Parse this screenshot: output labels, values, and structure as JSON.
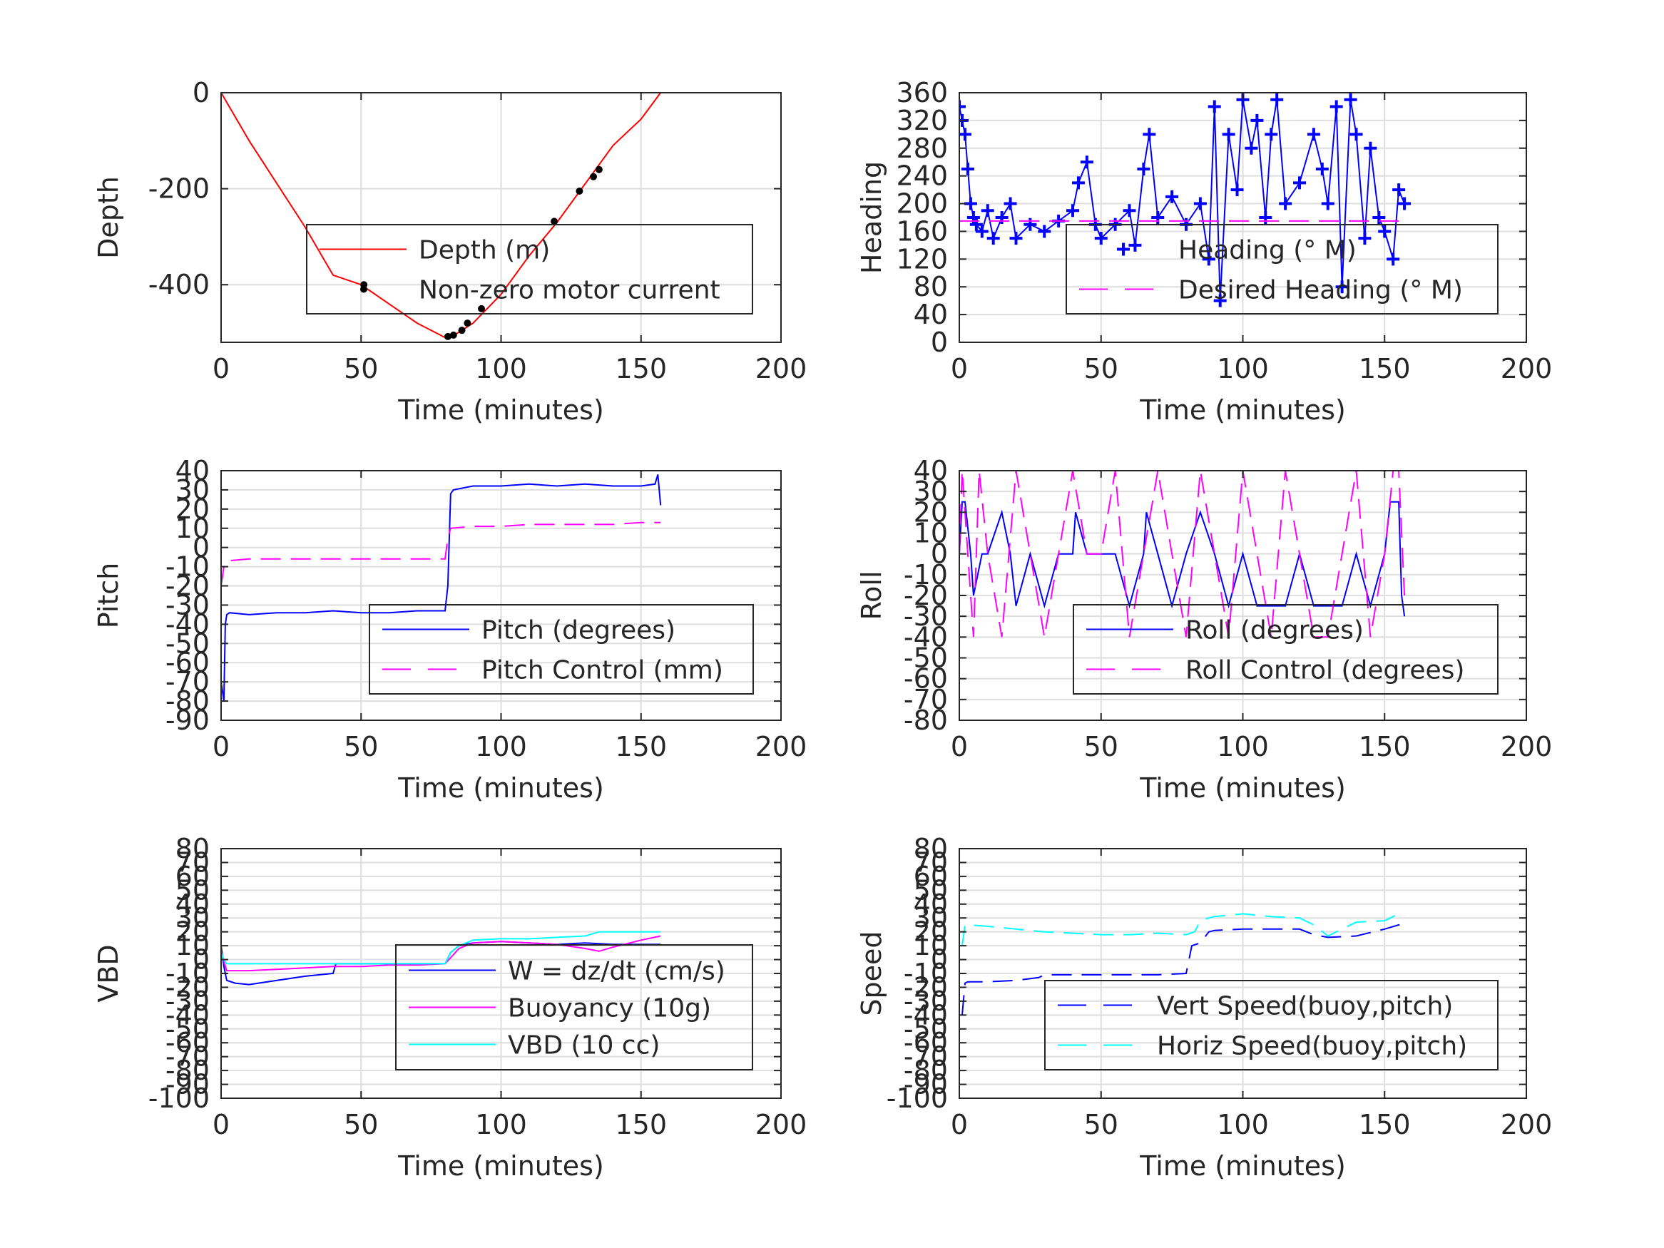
{
  "chart_data": [
    {
      "type": "line",
      "xlabel": "Time (minutes)",
      "ylabel": "Depth",
      "xlim": [
        0,
        200
      ],
      "ylim": [
        -520,
        0
      ],
      "xticks": [
        0,
        50,
        100,
        150,
        200
      ],
      "yticks": [
        -400,
        -200,
        0
      ],
      "ytick_labels": [
        "-400",
        "-200",
        "0"
      ],
      "grid": true,
      "legend": "center-right",
      "series": [
        {
          "name": "Depth (m)",
          "color": "#ff0000",
          "style": "solid",
          "x": [
            0,
            10,
            20,
            30,
            40,
            50,
            60,
            70,
            80,
            82,
            90,
            100,
            110,
            120,
            130,
            140,
            150,
            157
          ],
          "y": [
            0,
            -100,
            -190,
            -280,
            -380,
            -400,
            -440,
            -480,
            -510,
            -510,
            -480,
            -420,
            -340,
            -270,
            -190,
            -110,
            -55,
            0
          ]
        },
        {
          "name": "Non-zero motor current",
          "color": "#000000",
          "style": "markers",
          "x": [
            51,
            81,
            83,
            86,
            88,
            93,
            119,
            128,
            133,
            135
          ],
          "y": [
            -400,
            -508,
            -505,
            -495,
            -480,
            -450,
            -268,
            -205,
            -175,
            -160
          ]
        }
      ]
    },
    {
      "type": "line",
      "xlabel": "Time (minutes)",
      "ylabel": "Heading",
      "xlim": [
        0,
        200
      ],
      "ylim": [
        0,
        360
      ],
      "xticks": [
        0,
        50,
        100,
        150,
        200
      ],
      "yticks": [
        0,
        40,
        80,
        120,
        160,
        200,
        240,
        280,
        320,
        360
      ],
      "ytick_labels": [
        "0",
        "40",
        "80",
        "120",
        "160",
        "200",
        "240",
        "280",
        "320",
        "360"
      ],
      "grid": true,
      "legend": "center-right",
      "series": [
        {
          "name": "Heading (° M)",
          "color": "#0000ff",
          "style": "plus-markers",
          "x": [
            0,
            1,
            2,
            3,
            4,
            5,
            6,
            8,
            10,
            12,
            15,
            18,
            20,
            25,
            30,
            35,
            40,
            42,
            45,
            48,
            50,
            55,
            60,
            62,
            65,
            67,
            70,
            75,
            80,
            85,
            88,
            90,
            92,
            95,
            98,
            100,
            103,
            105,
            108,
            110,
            112,
            115,
            120,
            125,
            128,
            130,
            133,
            135,
            138,
            140,
            143,
            145,
            148,
            150,
            153,
            155,
            157
          ],
          "y": [
            340,
            320,
            300,
            250,
            200,
            180,
            170,
            160,
            190,
            150,
            180,
            200,
            150,
            170,
            160,
            175,
            190,
            230,
            260,
            170,
            150,
            170,
            190,
            140,
            250,
            300,
            180,
            210,
            170,
            200,
            120,
            340,
            60,
            300,
            220,
            350,
            280,
            320,
            180,
            300,
            350,
            200,
            230,
            300,
            250,
            200,
            340,
            80,
            350,
            300,
            150,
            280,
            180,
            160,
            120,
            220,
            200
          ]
        },
        {
          "name": "Desired Heading (° M)",
          "color": "#ff00ff",
          "style": "dashed",
          "x": [
            0,
            157
          ],
          "y": [
            175,
            175
          ]
        }
      ]
    },
    {
      "type": "line",
      "xlabel": "Time (minutes)",
      "ylabel": "Pitch",
      "xlim": [
        0,
        200
      ],
      "ylim": [
        -90,
        40
      ],
      "xticks": [
        0,
        50,
        100,
        150,
        200
      ],
      "yticks": [
        -90,
        -80,
        -70,
        -60,
        -50,
        -40,
        -30,
        -20,
        -10,
        0,
        10,
        20,
        30,
        40
      ],
      "ytick_labels": [
        "-90",
        "-80",
        "-70",
        "-60",
        "-50",
        "-40",
        "-30",
        "-20",
        "-10",
        "0",
        "10",
        "20",
        "30",
        "40"
      ],
      "grid": true,
      "legend": "center-right",
      "series": [
        {
          "name": "Pitch (degrees)",
          "color": "#0000ff",
          "style": "solid",
          "x": [
            0,
            1,
            1.5,
            2,
            3,
            10,
            20,
            30,
            40,
            50,
            60,
            70,
            80,
            81,
            82,
            83,
            90,
            100,
            110,
            120,
            130,
            140,
            150,
            155,
            156,
            157
          ],
          "y": [
            -70,
            -80,
            -40,
            -35,
            -34,
            -35,
            -34,
            -34,
            -33,
            -34,
            -34,
            -33,
            -33,
            -20,
            28,
            30,
            32,
            32,
            33,
            32,
            33,
            32,
            32,
            33,
            38,
            22
          ]
        },
        {
          "name": "Pitch Control (mm)",
          "color": "#ff00ff",
          "style": "dashed",
          "x": [
            0,
            1,
            2,
            10,
            20,
            30,
            40,
            50,
            60,
            70,
            80,
            81,
            82,
            90,
            100,
            110,
            120,
            130,
            140,
            150,
            157
          ],
          "y": [
            -20,
            -10,
            -7,
            -6,
            -6,
            -6,
            -6,
            -6,
            -6,
            -6,
            -6,
            5,
            10,
            11,
            11,
            12,
            12,
            12,
            12,
            13,
            13
          ]
        }
      ]
    },
    {
      "type": "line",
      "xlabel": "Time (minutes)",
      "ylabel": "Roll",
      "xlim": [
        0,
        200
      ],
      "ylim": [
        -80,
        40
      ],
      "xticks": [
        0,
        50,
        100,
        150,
        200
      ],
      "yticks": [
        -80,
        -70,
        -60,
        -50,
        -40,
        -30,
        -20,
        -10,
        0,
        10,
        20,
        30,
        40
      ],
      "ytick_labels": [
        "-80",
        "-70",
        "-60",
        "-50",
        "-40",
        "-30",
        "-20",
        "-10",
        "0",
        "10",
        "20",
        "30",
        "40"
      ],
      "grid": true,
      "legend": "center-right",
      "series": [
        {
          "name": "Roll (degrees)",
          "color": "#0000ff",
          "style": "solid",
          "x": [
            0,
            1,
            2,
            4,
            5,
            8,
            10,
            15,
            18,
            20,
            25,
            30,
            35,
            40,
            41,
            45,
            47,
            50,
            55,
            60,
            65,
            66,
            70,
            75,
            80,
            85,
            90,
            95,
            100,
            105,
            110,
            115,
            120,
            125,
            130,
            135,
            140,
            145,
            150,
            152,
            155,
            156,
            157
          ],
          "y": [
            0,
            25,
            25,
            0,
            -20,
            0,
            0,
            20,
            0,
            -25,
            0,
            -25,
            0,
            0,
            20,
            0,
            0,
            0,
            0,
            -25,
            0,
            20,
            0,
            -25,
            0,
            20,
            0,
            -25,
            0,
            -25,
            -25,
            -25,
            0,
            -25,
            -25,
            -25,
            0,
            -25,
            0,
            25,
            25,
            -20,
            -30
          ]
        },
        {
          "name": "Roll Control (degrees)",
          "color": "#ff00ff",
          "style": "dashed",
          "x": [
            0,
            1,
            3,
            5,
            7,
            10,
            15,
            20,
            25,
            30,
            35,
            40,
            45,
            50,
            55,
            60,
            65,
            70,
            75,
            80,
            85,
            90,
            95,
            100,
            105,
            110,
            115,
            120,
            125,
            130,
            135,
            140,
            145,
            150,
            153,
            155,
            157
          ],
          "y": [
            0,
            40,
            0,
            -40,
            40,
            0,
            -40,
            40,
            0,
            -40,
            0,
            40,
            0,
            0,
            40,
            -40,
            0,
            40,
            0,
            -40,
            40,
            0,
            -40,
            40,
            0,
            -40,
            40,
            0,
            -40,
            -40,
            0,
            40,
            -40,
            0,
            40,
            40,
            -20
          ]
        }
      ]
    },
    {
      "type": "line",
      "xlabel": "Time (minutes)",
      "ylabel": "VBD",
      "xlim": [
        0,
        200
      ],
      "ylim": [
        -100,
        80
      ],
      "xticks": [
        0,
        50,
        100,
        150,
        200
      ],
      "yticks": [
        -100,
        -90,
        -80,
        -70,
        -60,
        -50,
        -40,
        -30,
        -20,
        -10,
        0,
        10,
        20,
        30,
        40,
        50,
        60,
        70,
        80
      ],
      "ytick_labels": [
        "-100",
        "-90",
        "-80",
        "-70",
        "-60",
        "-50",
        "-40",
        "-30",
        "-20",
        "-10",
        "0",
        "10",
        "20",
        "30",
        "40",
        "50",
        "60",
        "70",
        "80"
      ],
      "grid": true,
      "legend": "center-right",
      "series": [
        {
          "name": "W = dz/dt (cm/s)",
          "color": "#0000ff",
          "style": "solid",
          "x": [
            0,
            1,
            2,
            5,
            10,
            20,
            30,
            40,
            41,
            50,
            60,
            70,
            80,
            82,
            85,
            90,
            100,
            110,
            120,
            130,
            140,
            150,
            157
          ],
          "y": [
            10,
            -5,
            -15,
            -17,
            -18,
            -15,
            -12,
            -10,
            -3,
            -3,
            -3,
            -3,
            -3,
            5,
            10,
            12,
            13,
            12,
            11,
            12,
            11,
            11,
            11
          ]
        },
        {
          "name": "Buoyancy (10g)",
          "color": "#ff00ff",
          "style": "solid",
          "x": [
            0,
            2,
            10,
            20,
            30,
            40,
            50,
            60,
            70,
            80,
            85,
            90,
            100,
            110,
            120,
            130,
            135,
            140,
            150,
            157
          ],
          "y": [
            5,
            -8,
            -8,
            -7,
            -6,
            -5,
            -5,
            -4,
            -4,
            -3,
            8,
            12,
            13,
            12,
            11,
            8,
            6,
            9,
            14,
            17
          ]
        },
        {
          "name": "VBD (10 cc)",
          "color": "#00ffff",
          "style": "solid",
          "x": [
            0,
            1,
            2,
            10,
            20,
            30,
            40,
            50,
            60,
            70,
            80,
            82,
            85,
            90,
            100,
            110,
            120,
            130,
            135,
            140,
            150,
            157
          ],
          "y": [
            5,
            0,
            -3,
            -3,
            -3,
            -3,
            -3,
            -3,
            -3,
            -3,
            -3,
            5,
            10,
            14,
            15,
            15,
            16,
            17,
            20,
            20,
            20,
            20
          ]
        }
      ]
    },
    {
      "type": "line",
      "xlabel": "Time (minutes)",
      "ylabel": "Speed",
      "xlim": [
        0,
        200
      ],
      "ylim": [
        -100,
        80
      ],
      "xticks": [
        0,
        50,
        100,
        150,
        200
      ],
      "yticks": [
        -100,
        -90,
        -80,
        -70,
        -60,
        -50,
        -40,
        -30,
        -20,
        -10,
        0,
        10,
        20,
        30,
        40,
        50,
        60,
        70,
        80
      ],
      "ytick_labels": [
        "-100",
        "-90",
        "-80",
        "-70",
        "-60",
        "-50",
        "-40",
        "-30",
        "-20",
        "-10",
        "0",
        "10",
        "20",
        "30",
        "40",
        "50",
        "60",
        "70",
        "80"
      ],
      "grid": true,
      "legend": "center-right",
      "series": [
        {
          "name": "Vert Speed(buoy,pitch)",
          "color": "#0000ff",
          "style": "dashed",
          "x": [
            1,
            2,
            3,
            10,
            20,
            28,
            30,
            40,
            50,
            60,
            70,
            80,
            82,
            85,
            88,
            90,
            100,
            110,
            120,
            125,
            130,
            140,
            150,
            155,
            157
          ],
          "y": [
            -40,
            -17,
            -16,
            -16,
            -15,
            -13,
            -11,
            -11,
            -11,
            -11,
            -11,
            -10,
            10,
            12,
            20,
            21,
            22,
            22,
            22,
            18,
            16,
            17,
            22,
            25,
            25
          ]
        },
        {
          "name": "Horiz Speed(buoy,pitch)",
          "color": "#00ffff",
          "style": "dashed",
          "x": [
            1,
            2,
            3,
            10,
            20,
            30,
            40,
            50,
            60,
            70,
            80,
            83,
            85,
            88,
            90,
            100,
            110,
            120,
            125,
            130,
            135,
            140,
            150,
            155,
            157
          ],
          "y": [
            10,
            25,
            25,
            24,
            22,
            20,
            19,
            18,
            18,
            19,
            18,
            20,
            28,
            30,
            31,
            33,
            31,
            30,
            25,
            17,
            22,
            27,
            28,
            33,
            32
          ]
        }
      ]
    }
  ]
}
